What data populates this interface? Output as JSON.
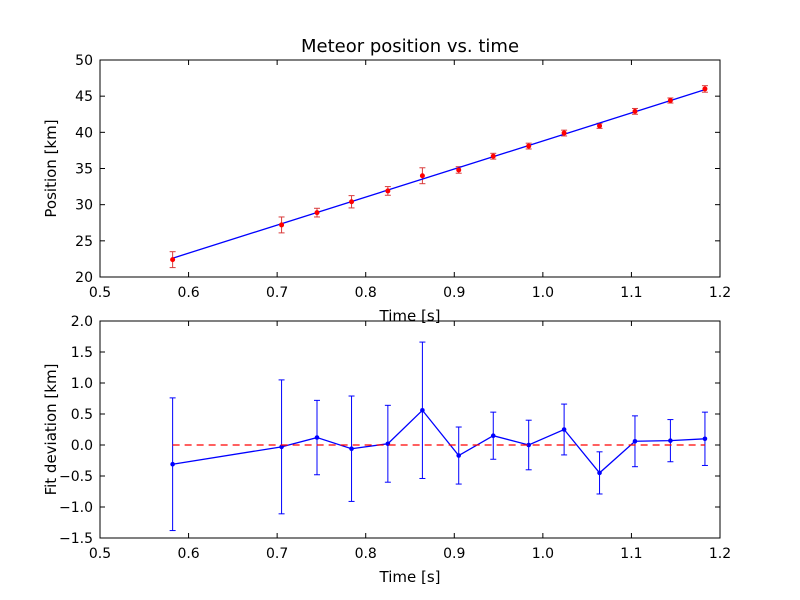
{
  "chart_data": [
    {
      "type": "scatter",
      "title": "Meteor position vs. time",
      "xlabel": "Time [s]",
      "ylabel": "Position [km]",
      "xlim": [
        0.5,
        1.2
      ],
      "ylim": [
        20,
        50
      ],
      "xticks": [
        "0.5",
        "0.6",
        "0.7",
        "0.8",
        "0.9",
        "1.0",
        "1.1",
        "1.2"
      ],
      "yticks": [
        "20",
        "25",
        "30",
        "35",
        "40",
        "45",
        "50"
      ],
      "grid": false,
      "series": [
        {
          "kind": "points-with-errorbars",
          "color": "#ff0000",
          "errorbar_color": "#d93b3b",
          "x": [
            0.582,
            0.705,
            0.745,
            0.784,
            0.825,
            0.864,
            0.905,
            0.944,
            0.984,
            1.024,
            1.064,
            1.104,
            1.144,
            1.183
          ],
          "y": [
            22.4,
            27.2,
            28.9,
            30.4,
            31.9,
            34.0,
            34.8,
            36.7,
            38.1,
            39.9,
            40.9,
            42.9,
            44.4,
            46.0
          ],
          "yerr": [
            1.1,
            1.1,
            0.6,
            0.85,
            0.6,
            1.1,
            0.45,
            0.4,
            0.4,
            0.4,
            0.35,
            0.4,
            0.35,
            0.45
          ]
        },
        {
          "kind": "fit-line",
          "color": "#0000ff",
          "x": [
            0.582,
            1.183
          ],
          "y": [
            22.6,
            45.9
          ]
        }
      ]
    },
    {
      "type": "line",
      "xlabel": "Time [s]",
      "ylabel": "Fit deviation [km]",
      "xlim": [
        0.5,
        1.2
      ],
      "ylim": [
        -1.5,
        2.0
      ],
      "xticks": [
        "0.5",
        "0.6",
        "0.7",
        "0.8",
        "0.9",
        "1.0",
        "1.1",
        "1.2"
      ],
      "yticks": [
        "−1.5",
        "−1.0",
        "−0.5",
        "0.0",
        "0.5",
        "1.0",
        "1.5",
        "2.0"
      ],
      "grid": false,
      "series": [
        {
          "kind": "line-with-errorbars",
          "color": "#0000ff",
          "x": [
            0.582,
            0.705,
            0.745,
            0.784,
            0.825,
            0.864,
            0.905,
            0.944,
            0.984,
            1.024,
            1.064,
            1.104,
            1.144,
            1.183
          ],
          "y": [
            -0.31,
            -0.03,
            0.12,
            -0.06,
            0.02,
            0.56,
            -0.17,
            0.15,
            0.0,
            0.25,
            -0.45,
            0.06,
            0.07,
            0.1
          ],
          "yerr": [
            1.07,
            1.08,
            0.6,
            0.85,
            0.62,
            1.1,
            0.46,
            0.38,
            0.4,
            0.41,
            0.34,
            0.41,
            0.34,
            0.43
          ]
        },
        {
          "kind": "reference-line",
          "color": "#ff0000",
          "style": "dashed",
          "x": [
            0.582,
            1.183
          ],
          "y": [
            0,
            0
          ]
        }
      ]
    }
  ]
}
